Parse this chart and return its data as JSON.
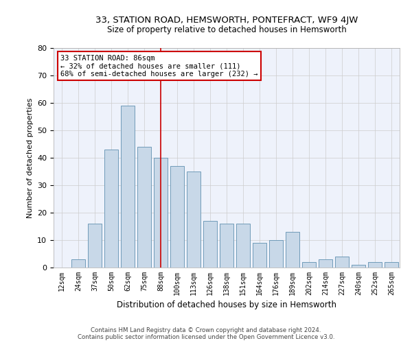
{
  "title": "33, STATION ROAD, HEMSWORTH, PONTEFRACT, WF9 4JW",
  "subtitle": "Size of property relative to detached houses in Hemsworth",
  "xlabel": "Distribution of detached houses by size in Hemsworth",
  "ylabel": "Number of detached properties",
  "categories": [
    "12sqm",
    "24sqm",
    "37sqm",
    "50sqm",
    "62sqm",
    "75sqm",
    "88sqm",
    "100sqm",
    "113sqm",
    "126sqm",
    "138sqm",
    "151sqm",
    "164sqm",
    "176sqm",
    "189sqm",
    "202sqm",
    "214sqm",
    "227sqm",
    "240sqm",
    "252sqm",
    "265sqm"
  ],
  "values": [
    0,
    3,
    16,
    43,
    59,
    44,
    40,
    37,
    35,
    17,
    16,
    16,
    9,
    10,
    13,
    2,
    3,
    4,
    1,
    2,
    2
  ],
  "bar_color": "#c8d8e8",
  "bar_edge_color": "#6090b0",
  "grid_color": "#cccccc",
  "bg_color": "#eef2fb",
  "vline_x_index": 6,
  "vline_color": "#cc0000",
  "annotation_text": "33 STATION ROAD: 86sqm\n← 32% of detached houses are smaller (111)\n68% of semi-detached houses are larger (232) →",
  "annotation_box_color": "#ffffff",
  "annotation_box_edge": "#cc0000",
  "ylim": [
    0,
    80
  ],
  "yticks": [
    0,
    10,
    20,
    30,
    40,
    50,
    60,
    70,
    80
  ],
  "footer1": "Contains HM Land Registry data © Crown copyright and database right 2024.",
  "footer2": "Contains public sector information licensed under the Open Government Licence v3.0."
}
